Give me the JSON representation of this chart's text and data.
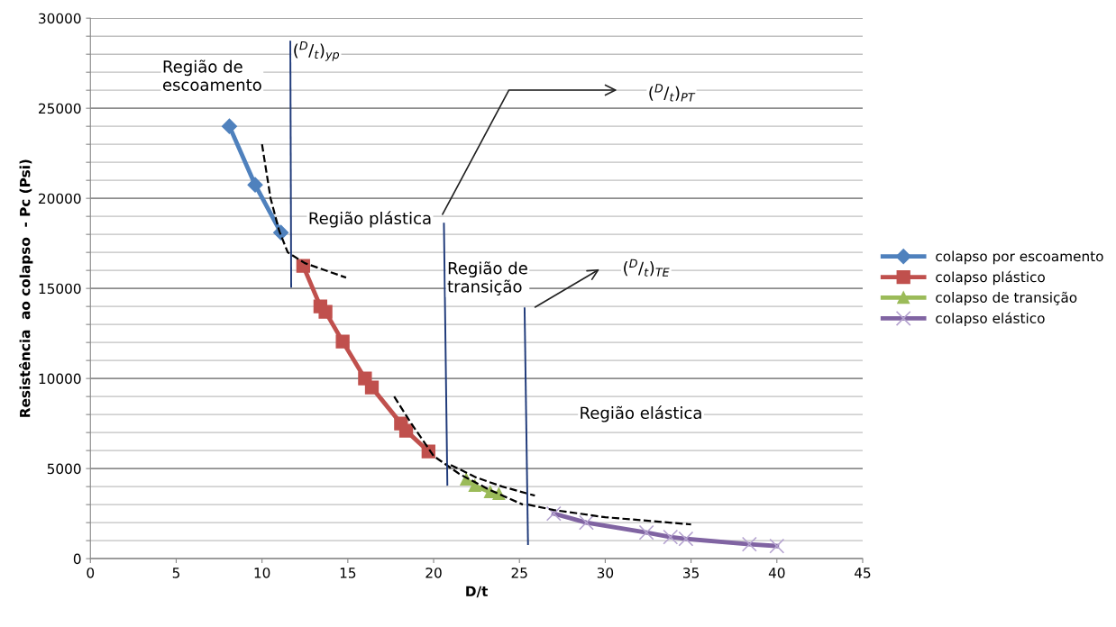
{
  "chart_data": {
    "type": "line",
    "xlabel": "D/t",
    "ylabel": "Resistência  ao colapso  - Pc (Psi)",
    "xlim": [
      0,
      45
    ],
    "xticks": [
      0,
      5,
      10,
      15,
      20,
      25,
      30,
      35,
      40,
      45
    ],
    "ylim": [
      0,
      30000
    ],
    "yticks": [
      0,
      {
        "value": 1000,
        "label": null
      },
      {
        "value": 2000,
        "label": null
      },
      {
        "value": 3000,
        "label": null
      },
      {
        "value": 4000,
        "label": null
      },
      5000,
      {
        "value": 6000,
        "label": null
      },
      {
        "value": 7000,
        "label": null
      },
      {
        "value": 8000,
        "label": null
      },
      {
        "value": 9000,
        "label": null
      },
      10000,
      {
        "value": 11000,
        "label": null
      },
      {
        "value": 12000,
        "label": null
      },
      {
        "value": 13000,
        "label": null
      },
      {
        "value": 14000,
        "label": null
      },
      15000,
      {
        "value": 16000,
        "label": null
      },
      {
        "value": 17000,
        "label": null
      },
      {
        "value": 18000,
        "label": null
      },
      {
        "value": 19000,
        "label": null
      },
      20000,
      {
        "value": 21000,
        "label": null
      },
      {
        "value": 22000,
        "label": null
      },
      {
        "value": 23000,
        "label": null
      },
      {
        "value": 24000,
        "label": null
      },
      25000,
      {
        "value": 26000,
        "label": null
      },
      {
        "value": 27000,
        "label": null
      },
      {
        "value": 28000,
        "label": null
      },
      {
        "value": 29000,
        "label": null
      },
      30000
    ],
    "grid": "y",
    "legend": "right",
    "series": [
      {
        "name": "colapso por escoamento",
        "color": "#4f81bd",
        "marker": "diamond",
        "x": [
          8.1,
          9.6,
          11.1
        ],
        "values": [
          24000,
          20750,
          18100
        ]
      },
      {
        "name": "colapso plástico",
        "color": "#c0504d",
        "marker": "square",
        "x": [
          12.4,
          13.4,
          13.7,
          14.7,
          16.0,
          16.4,
          18.1,
          18.4,
          19.7
        ],
        "values": [
          16250,
          14000,
          13700,
          12050,
          10000,
          9500,
          7500,
          7100,
          5950
        ]
      },
      {
        "name": "colapso de transição",
        "color": "#9bbb59",
        "marker": "triangle",
        "x": [
          21.9,
          22.4,
          23.3,
          23.8
        ],
        "values": [
          4400,
          4050,
          3700,
          3600
        ]
      },
      {
        "name": "colapso elástico",
        "color": "#8064a2",
        "marker": "cross",
        "x": [
          27.0,
          28.9,
          32.4,
          33.8,
          34.7,
          38.4,
          40.0
        ],
        "values": [
          2500,
          2000,
          1450,
          1200,
          1100,
          800,
          700
        ]
      },
      {
        "color": "#000000",
        "line_style": "dashed",
        "marker": "none",
        "x": [
          10.0,
          10.5,
          11.0,
          11.5,
          12.5,
          14.9
        ],
        "values": [
          23000,
          20000,
          18200,
          17000,
          16400,
          15600
        ]
      },
      {
        "color": "#000000",
        "line_style": "dashed",
        "marker": "none",
        "x": [
          17.7,
          18.7,
          20.0,
          21.5,
          23.3,
          25.2
        ],
        "values": [
          9000,
          7500,
          5700,
          4700,
          3800,
          3000
        ]
      },
      {
        "color": "#000000",
        "line_style": "dashed",
        "marker": "none",
        "x": [
          21.0,
          22.5,
          24.0,
          25.9
        ],
        "values": [
          5200,
          4500,
          4000,
          3500
        ]
      },
      {
        "color": "#000000",
        "line_style": "dashed",
        "marker": "none",
        "x": [
          25.5,
          27.0,
          30.0,
          35.0
        ],
        "values": [
          3000,
          2700,
          2300,
          1900
        ]
      },
      {
        "color": "#1f3a7a",
        "line_style": "solid",
        "marker": "none",
        "x": [
          11.65,
          11.7
        ],
        "values": [
          28700,
          15100
        ]
      },
      {
        "color": "#1f3a7a",
        "line_style": "solid",
        "marker": "none",
        "x": [
          20.6,
          20.8
        ],
        "values": [
          18600,
          4100
        ]
      },
      {
        "color": "#1f3a7a",
        "line_style": "solid",
        "marker": "none",
        "x": [
          25.3,
          25.5
        ],
        "values": [
          13900,
          800
        ]
      }
    ],
    "annotations": [
      "Região de\nescoamento",
      "($^{D}$/$_{t}$)$_{yp}$",
      "Região plástica",
      "($^{D}$/$_{t}$)$_{PT}$",
      "($^{D}$/$_{t}$)$_{TE}$",
      "Região de\ntransição",
      "Região elástica"
    ]
  }
}
